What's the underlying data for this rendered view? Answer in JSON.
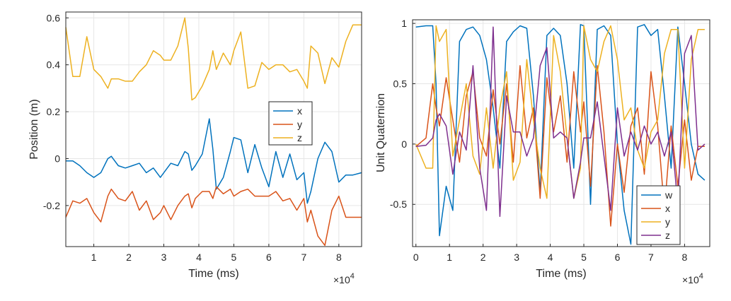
{
  "chart_data": [
    {
      "type": "line",
      "xlabel": "Time (ms)",
      "ylabel": "Position (m)",
      "x_exponent_label": "×10",
      "x_exponent_power": "4",
      "xlim": [
        0.2,
        8.65
      ],
      "ylim": [
        -0.375,
        0.625
      ],
      "xticks": [
        1,
        2,
        3,
        4,
        5,
        6,
        7,
        8
      ],
      "xtick_labels": [
        "1",
        "2",
        "3",
        "4",
        "5",
        "6",
        "7",
        "8"
      ],
      "yticks": [
        -0.2,
        0,
        0.2,
        0.4,
        0.6
      ],
      "ytick_labels": [
        "-0.2",
        "0",
        "0.2",
        "0.4",
        "0.6"
      ],
      "grid": true,
      "legend_position": "center-right",
      "x": [
        0.2,
        0.4,
        0.6,
        0.8,
        1.0,
        1.2,
        1.4,
        1.5,
        1.7,
        1.9,
        2.1,
        2.3,
        2.5,
        2.7,
        2.9,
        3.0,
        3.2,
        3.4,
        3.6,
        3.7,
        3.8,
        3.9,
        4.1,
        4.3,
        4.4,
        4.5,
        4.7,
        4.9,
        5.0,
        5.2,
        5.4,
        5.6,
        5.8,
        6.0,
        6.2,
        6.4,
        6.6,
        6.8,
        7.0,
        7.1,
        7.2,
        7.4,
        7.6,
        7.8,
        8.0,
        8.2,
        8.4,
        8.65
      ],
      "series": [
        {
          "name": "x",
          "color": "#0072BD",
          "values": [
            -0.01,
            -0.01,
            -0.03,
            -0.06,
            -0.08,
            -0.06,
            0.0,
            0.01,
            -0.03,
            -0.04,
            -0.03,
            -0.02,
            -0.06,
            -0.04,
            -0.08,
            -0.06,
            -0.02,
            -0.03,
            0.03,
            0.02,
            -0.05,
            -0.03,
            0.02,
            0.17,
            0.04,
            -0.13,
            -0.08,
            0.03,
            0.09,
            0.08,
            -0.06,
            0.06,
            -0.04,
            -0.12,
            0.03,
            -0.08,
            0.02,
            -0.09,
            -0.06,
            -0.19,
            -0.14,
            0.0,
            0.07,
            0.03,
            -0.1,
            -0.07,
            -0.07,
            -0.06
          ]
        },
        {
          "name": "y",
          "color": "#D95319",
          "values": [
            -0.25,
            -0.18,
            -0.19,
            -0.17,
            -0.23,
            -0.27,
            -0.16,
            -0.13,
            -0.17,
            -0.18,
            -0.14,
            -0.22,
            -0.18,
            -0.26,
            -0.23,
            -0.2,
            -0.26,
            -0.2,
            -0.16,
            -0.15,
            -0.21,
            -0.17,
            -0.14,
            -0.14,
            -0.17,
            -0.12,
            -0.15,
            -0.13,
            -0.16,
            -0.14,
            -0.13,
            -0.16,
            -0.16,
            -0.16,
            -0.14,
            -0.18,
            -0.17,
            -0.22,
            -0.17,
            -0.27,
            -0.22,
            -0.33,
            -0.37,
            -0.22,
            -0.16,
            -0.25,
            -0.25,
            -0.25
          ]
        },
        {
          "name": "z",
          "color": "#EDB120",
          "values": [
            0.56,
            0.35,
            0.35,
            0.52,
            0.38,
            0.35,
            0.3,
            0.34,
            0.34,
            0.33,
            0.33,
            0.37,
            0.4,
            0.46,
            0.44,
            0.42,
            0.42,
            0.48,
            0.6,
            0.47,
            0.25,
            0.26,
            0.31,
            0.38,
            0.46,
            0.38,
            0.45,
            0.4,
            0.46,
            0.54,
            0.3,
            0.31,
            0.41,
            0.38,
            0.4,
            0.4,
            0.37,
            0.38,
            0.33,
            0.3,
            0.48,
            0.45,
            0.32,
            0.43,
            0.39,
            0.5,
            0.57,
            0.57
          ]
        }
      ]
    },
    {
      "type": "line",
      "xlabel": "Time (ms)",
      "ylabel": "Unit Quaternion",
      "x_exponent_label": "×10",
      "x_exponent_power": "4",
      "xlim": [
        -0.1,
        8.75
      ],
      "ylim": [
        -0.85,
        1.03
      ],
      "xticks": [
        0,
        1,
        2,
        3,
        4,
        5,
        6,
        7,
        8
      ],
      "xtick_labels": [
        "0",
        "1",
        "2",
        "3",
        "4",
        "5",
        "6",
        "7",
        "8"
      ],
      "yticks": [
        -0.5,
        0,
        0.5,
        1
      ],
      "ytick_labels": [
        "-0.5",
        "0",
        "0.5",
        "1"
      ],
      "grid": true,
      "legend_position": "bottom-right",
      "x": [
        0.0,
        0.3,
        0.5,
        0.6,
        0.7,
        0.9,
        1.1,
        1.3,
        1.5,
        1.7,
        1.9,
        2.1,
        2.3,
        2.5,
        2.7,
        2.9,
        3.1,
        3.3,
        3.5,
        3.7,
        3.9,
        4.1,
        4.3,
        4.5,
        4.7,
        4.9,
        5.0,
        5.2,
        5.4,
        5.6,
        5.8,
        6.0,
        6.2,
        6.4,
        6.6,
        6.8,
        7.0,
        7.2,
        7.4,
        7.6,
        7.8,
        8.0,
        8.2,
        8.4,
        8.6
      ],
      "series": [
        {
          "name": "w",
          "color": "#0072BD",
          "values": [
            0.97,
            0.98,
            0.98,
            0.5,
            -0.76,
            -0.35,
            -0.55,
            0.85,
            0.95,
            0.97,
            0.9,
            0.7,
            0.3,
            -0.2,
            0.85,
            0.93,
            0.98,
            0.96,
            0.4,
            -0.4,
            0.9,
            0.96,
            0.9,
            0.5,
            -0.2,
            0.99,
            0.98,
            -0.5,
            0.95,
            0.98,
            0.9,
            0.0,
            -0.55,
            -0.83,
            0.97,
            0.99,
            0.9,
            0.95,
            0.4,
            -0.2,
            0.97,
            0.5,
            0.0,
            -0.25,
            -0.3
          ]
        },
        {
          "name": "x",
          "color": "#D95319",
          "values": [
            -0.02,
            0.05,
            0.5,
            0.3,
            0.15,
            0.55,
            0.2,
            -0.15,
            0.4,
            0.6,
            0.05,
            -0.1,
            0.45,
            0.0,
            0.5,
            -0.15,
            0.65,
            0.05,
            0.3,
            -0.45,
            0.55,
            0.1,
            0.4,
            -0.15,
            0.6,
            0.1,
            0.35,
            -0.35,
            0.65,
            0.1,
            -0.68,
            0.0,
            -0.4,
            0.15,
            0.3,
            -0.25,
            0.6,
            0.15,
            -0.55,
            0.15,
            -0.35,
            0.2,
            -0.3,
            -0.02,
            -0.02
          ]
        },
        {
          "name": "y",
          "color": "#EDB120",
          "values": [
            0.0,
            -0.2,
            -0.2,
            0.98,
            0.85,
            0.95,
            -0.1,
            0.2,
            0.5,
            -0.1,
            -0.25,
            0.3,
            -0.2,
            0.3,
            0.6,
            -0.3,
            -0.15,
            0.7,
            0.2,
            -0.2,
            -0.45,
            0.9,
            0.6,
            0.05,
            -0.45,
            -0.2,
            0.98,
            0.7,
            0.6,
            0.85,
            0.98,
            0.7,
            0.2,
            0.3,
            -0.05,
            -0.2,
            0.1,
            0.2,
            0.75,
            0.95,
            0.95,
            -0.2,
            0.7,
            0.95,
            0.95
          ]
        },
        {
          "name": "z",
          "color": "#7E2F8E",
          "values": [
            -0.02,
            -0.01,
            0.05,
            0.2,
            0.25,
            0.15,
            -0.25,
            0.1,
            -0.05,
            0.65,
            -0.2,
            -0.55,
            0.97,
            -0.6,
            0.4,
            0.1,
            0.1,
            -0.1,
            0.05,
            0.65,
            0.8,
            0.05,
            0.1,
            0.05,
            -0.45,
            -0.15,
            0.05,
            0.05,
            0.35,
            -0.1,
            -0.55,
            0.3,
            -0.1,
            0.1,
            -0.05,
            0.15,
            0.0,
            0.1,
            -0.1,
            0.1,
            -0.5,
            0.75,
            0.9,
            -0.05,
            0.0
          ]
        }
      ]
    }
  ]
}
